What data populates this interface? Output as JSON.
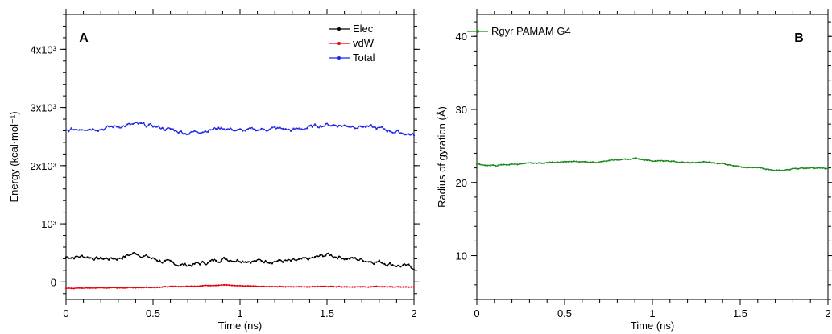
{
  "chart_data": [
    {
      "type": "line",
      "panel_label": "A",
      "xlabel": "Time (ns)",
      "ylabel": "Energy (kcal·mol⁻¹)",
      "xlim": [
        0,
        2
      ],
      "ylim": [
        -300,
        4600
      ],
      "x_ticks": [
        {
          "value": 0,
          "label": "0"
        },
        {
          "value": 0.5,
          "label": "0.5"
        },
        {
          "value": 1,
          "label": "1"
        },
        {
          "value": 1.5,
          "label": "1.5"
        },
        {
          "value": 2,
          "label": "2"
        }
      ],
      "y_ticks": [
        {
          "value": 0,
          "label": "0"
        },
        {
          "value": 1000,
          "label": "10³"
        },
        {
          "value": 2000,
          "label": "2x10³"
        },
        {
          "value": 3000,
          "label": "3x10³"
        },
        {
          "value": 4000,
          "label": "4x10³"
        }
      ],
      "legend_position": "top-right",
      "series": [
        {
          "name": "Elec",
          "color": "#000000",
          "x": [
            0,
            0.1,
            0.2,
            0.3,
            0.4,
            0.5,
            0.6,
            0.7,
            0.8,
            0.9,
            1.0,
            1.1,
            1.2,
            1.3,
            1.4,
            1.5,
            1.6,
            1.7,
            1.8,
            1.9,
            2.0
          ],
          "values": [
            430,
            440,
            400,
            410,
            500,
            400,
            320,
            290,
            330,
            400,
            380,
            360,
            370,
            350,
            390,
            470,
            420,
            380,
            350,
            290,
            250
          ]
        },
        {
          "name": "vdW",
          "color": "#e8000b",
          "x": [
            0,
            0.1,
            0.2,
            0.3,
            0.4,
            0.5,
            0.6,
            0.7,
            0.8,
            0.9,
            1.0,
            1.1,
            1.2,
            1.3,
            1.4,
            1.5,
            1.6,
            1.7,
            1.8,
            1.9,
            2.0
          ],
          "values": [
            -110,
            -105,
            -100,
            -100,
            -95,
            -90,
            -80,
            -75,
            -60,
            -50,
            -65,
            -70,
            -80,
            -85,
            -80,
            -75,
            -80,
            -85,
            -80,
            -85,
            -90
          ]
        },
        {
          "name": "Total",
          "color": "#1f28e6",
          "x": [
            0,
            0.1,
            0.2,
            0.3,
            0.4,
            0.5,
            0.6,
            0.7,
            0.8,
            0.9,
            1.0,
            1.1,
            1.2,
            1.3,
            1.4,
            1.5,
            1.6,
            1.7,
            1.8,
            1.9,
            2.0
          ],
          "values": [
            2600,
            2650,
            2640,
            2680,
            2710,
            2680,
            2620,
            2560,
            2610,
            2650,
            2600,
            2620,
            2640,
            2610,
            2660,
            2710,
            2690,
            2680,
            2640,
            2580,
            2530
          ]
        }
      ]
    },
    {
      "type": "line",
      "panel_label": "B",
      "xlabel": "Time (ns)",
      "ylabel": "Radius of gyration (Å)",
      "xlim": [
        0,
        2
      ],
      "ylim": [
        4,
        43
      ],
      "x_ticks": [
        {
          "value": 0,
          "label": "0"
        },
        {
          "value": 0.5,
          "label": "0.5"
        },
        {
          "value": 1,
          "label": "1"
        },
        {
          "value": 1.5,
          "label": "1.5"
        },
        {
          "value": 2,
          "label": "2"
        }
      ],
      "y_ticks": [
        {
          "value": 10,
          "label": "10"
        },
        {
          "value": 20,
          "label": "20"
        },
        {
          "value": 30,
          "label": "30"
        },
        {
          "value": 40,
          "label": "40"
        }
      ],
      "legend_position": "top-left",
      "series": [
        {
          "name": "Rgyr PAMAM G4",
          "color": "#1e8a1e",
          "x": [
            0,
            0.1,
            0.2,
            0.3,
            0.4,
            0.5,
            0.6,
            0.7,
            0.8,
            0.9,
            1.0,
            1.1,
            1.2,
            1.3,
            1.4,
            1.5,
            1.6,
            1.7,
            1.8,
            1.9,
            2.0
          ],
          "values": [
            22.5,
            22.3,
            22.5,
            22.6,
            22.7,
            22.9,
            22.8,
            22.8,
            23.1,
            23.3,
            23.0,
            22.9,
            22.7,
            22.8,
            22.6,
            22.2,
            22.0,
            21.6,
            21.9,
            22.0,
            21.9
          ]
        }
      ]
    }
  ]
}
